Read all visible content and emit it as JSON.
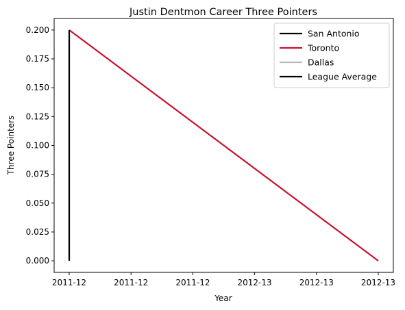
{
  "chart_data": {
    "type": "line",
    "title": "Justin Dentmon Career Three Pointers",
    "xlabel": "Year",
    "ylabel": "Three Pointers",
    "x_tick_labels": [
      "2011-12",
      "2011-12",
      "2011-12",
      "2012-13",
      "2012-13",
      "2012-13"
    ],
    "y_tick_labels": [
      "0.000",
      "0.025",
      "0.050",
      "0.075",
      "0.100",
      "0.125",
      "0.150",
      "0.175",
      "0.200"
    ],
    "xlim": [
      0,
      1
    ],
    "ylim": [
      -0.01,
      0.21
    ],
    "y_ticks": [
      0,
      0.025,
      0.05,
      0.075,
      0.1,
      0.125,
      0.15,
      0.175,
      0.2
    ],
    "x_ticks": [
      0,
      0.2,
      0.4,
      0.6,
      0.8,
      1.0
    ],
    "grid": false,
    "legend_position": "top-right",
    "series": [
      {
        "name": "San Antonio",
        "color": "#000000",
        "x": [
          0,
          0
        ],
        "y": [
          0.0,
          0.2
        ]
      },
      {
        "name": "Toronto",
        "color": "#c8102e",
        "x": [
          0,
          1
        ],
        "y": [
          0.2,
          0.0
        ]
      },
      {
        "name": "Dallas",
        "color": "#bbbbbb",
        "x": [],
        "y": []
      },
      {
        "name": "League Average",
        "color": "#000000",
        "x": [],
        "y": []
      }
    ]
  }
}
